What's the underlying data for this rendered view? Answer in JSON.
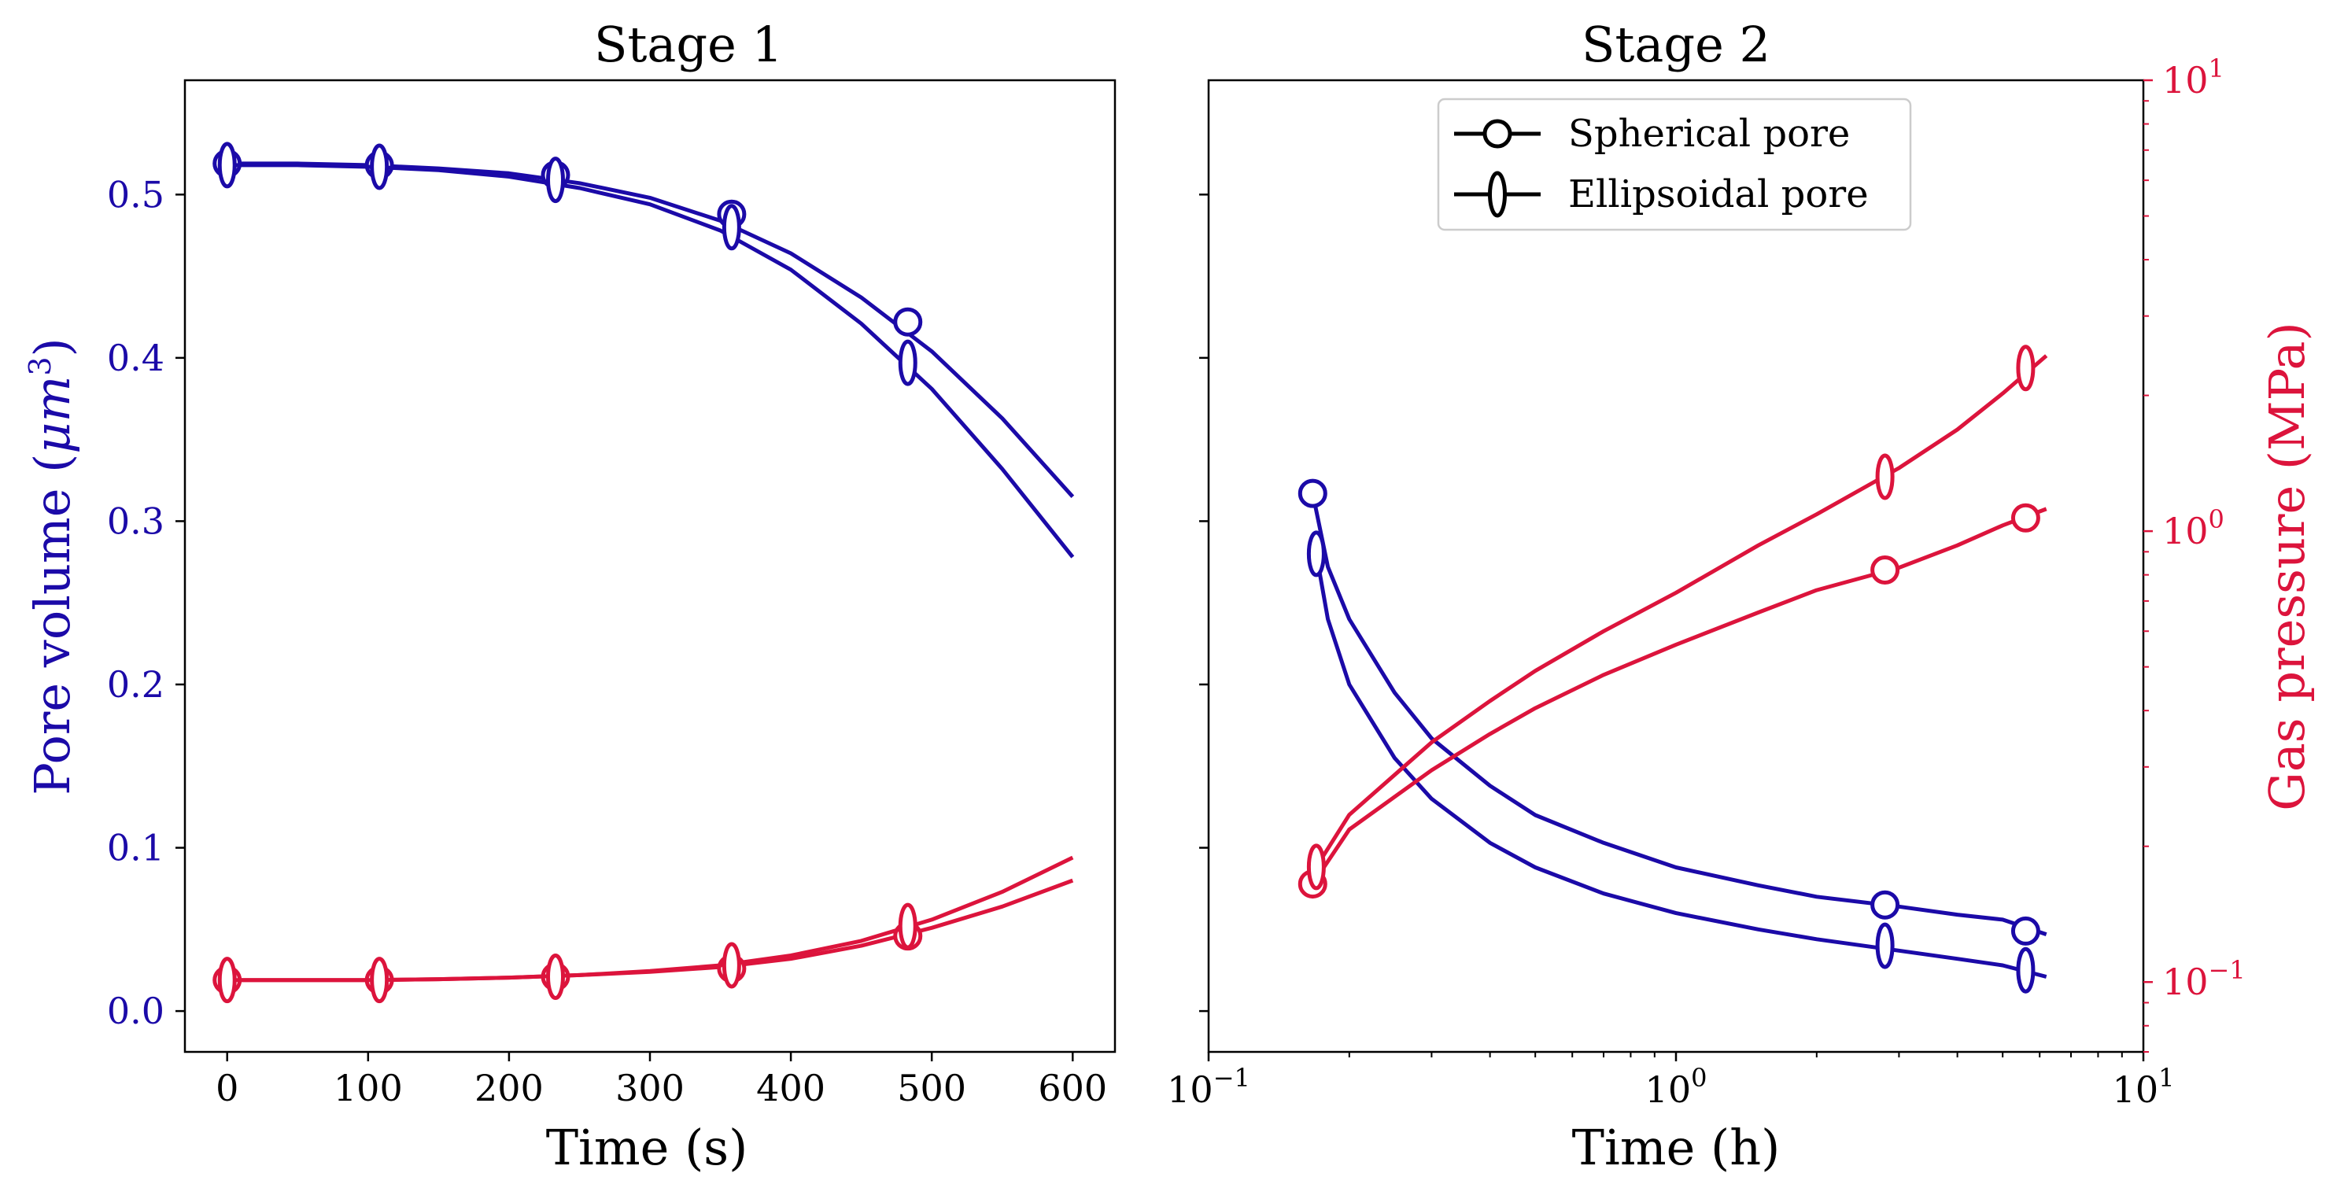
{
  "colors": {
    "volume": "#1b0aa8",
    "pressure": "#dc143c",
    "axis": "#000000",
    "legend_marker": "#000000"
  },
  "chart_data": [
    {
      "id": "stage1",
      "type": "line",
      "title": "Stage 1",
      "xlabel": "Time (s)",
      "ylabel": "Pore volume (μm³)",
      "ylabel_text": "Pore volume (",
      "ylabel_unit": "μm",
      "ylabel_sup": "3",
      "ylabel_close": ")",
      "xlim": [
        -30,
        630
      ],
      "ylim": [
        -0.025,
        0.57
      ],
      "xticks": [
        0,
        100,
        200,
        300,
        400,
        500,
        600
      ],
      "xtick_labels": [
        "0",
        "100",
        "200",
        "300",
        "400",
        "500",
        "600"
      ],
      "yticks": [
        0.0,
        0.1,
        0.2,
        0.3,
        0.4,
        0.5
      ],
      "ytick_labels": [
        "0.0",
        "0.1",
        "0.2",
        "0.3",
        "0.4",
        "0.5"
      ],
      "series": [
        {
          "name": "Spherical pore volume",
          "color_key": "volume",
          "marker": "circle",
          "x": [
            0,
            50,
            100,
            150,
            200,
            250,
            300,
            350,
            400,
            450,
            500,
            550,
            600
          ],
          "y": [
            0.519,
            0.519,
            0.518,
            0.516,
            0.513,
            0.507,
            0.498,
            0.484,
            0.464,
            0.437,
            0.404,
            0.363,
            0.315
          ],
          "marker_x": [
            0,
            108,
            233,
            358,
            483
          ],
          "marker_y": [
            0.519,
            0.518,
            0.512,
            0.488,
            0.422
          ]
        },
        {
          "name": "Ellipsoidal pore volume",
          "color_key": "volume",
          "marker": "ellipse",
          "x": [
            0,
            50,
            100,
            150,
            200,
            250,
            300,
            350,
            400,
            450,
            500,
            550,
            600
          ],
          "y": [
            0.518,
            0.518,
            0.517,
            0.515,
            0.511,
            0.504,
            0.494,
            0.478,
            0.454,
            0.421,
            0.381,
            0.332,
            0.278
          ],
          "marker_x": [
            0,
            108,
            233,
            358,
            483
          ],
          "marker_y": [
            0.518,
            0.517,
            0.509,
            0.48,
            0.397
          ]
        },
        {
          "name": "Spherical pore pressure",
          "color_key": "pressure",
          "marker": "circle",
          "x": [
            0,
            50,
            100,
            150,
            200,
            250,
            300,
            350,
            400,
            450,
            500,
            550,
            600
          ],
          "y": [
            0.019,
            0.019,
            0.019,
            0.0195,
            0.0205,
            0.022,
            0.024,
            0.027,
            0.032,
            0.04,
            0.051,
            0.064,
            0.08
          ],
          "marker_x": [
            0,
            108,
            233,
            358,
            483
          ],
          "marker_y": [
            0.019,
            0.019,
            0.021,
            0.026,
            0.046
          ]
        },
        {
          "name": "Ellipsoidal pore pressure",
          "color_key": "pressure",
          "marker": "ellipse",
          "x": [
            0,
            50,
            100,
            150,
            200,
            250,
            300,
            350,
            400,
            450,
            500,
            550,
            600
          ],
          "y": [
            0.019,
            0.019,
            0.019,
            0.0195,
            0.0205,
            0.022,
            0.0245,
            0.028,
            0.034,
            0.043,
            0.056,
            0.073,
            0.094
          ],
          "marker_x": [
            0,
            108,
            233,
            358,
            483
          ],
          "marker_y": [
            0.019,
            0.019,
            0.021,
            0.028,
            0.052
          ]
        }
      ]
    },
    {
      "id": "stage2",
      "type": "line",
      "title": "Stage 2",
      "xlabel": "Time (h)",
      "xscale": "log",
      "xlim": [
        0.1,
        10
      ],
      "xtick_labels": [
        {
          "value": 0.1,
          "base": "10",
          "exp": "−1"
        },
        {
          "value": 1,
          "base": "10",
          "exp": "0"
        },
        {
          "value": 10,
          "base": "10",
          "exp": "1"
        }
      ],
      "left_axis": {
        "ylim": [
          -0.025,
          0.57
        ],
        "shared_with": "stage1",
        "tick_labels_visible": false
      },
      "right_axis": {
        "ylabel": "Gas pressure (MPa)",
        "yscale": "log",
        "ylim": [
          0.07,
          10
        ],
        "ytick_labels": [
          {
            "value": 0.1,
            "base": "10",
            "exp": "−1"
          },
          {
            "value": 1,
            "base": "10",
            "exp": "0"
          },
          {
            "value": 10,
            "base": "10",
            "exp": "1"
          }
        ]
      },
      "legend": {
        "placement": "upper-center",
        "entries": [
          {
            "label": "Spherical pore",
            "marker": "circle"
          },
          {
            "label": "Ellipsoidal pore",
            "marker": "ellipse"
          }
        ]
      },
      "series": [
        {
          "name": "Spherical pore volume",
          "axis": "left",
          "color_key": "volume",
          "marker": "circle",
          "x": [
            0.167,
            0.18,
            0.2,
            0.25,
            0.3,
            0.4,
            0.5,
            0.7,
            1.0,
            1.5,
            2.0,
            3.0,
            4.0,
            5.0,
            6.2
          ],
          "y": [
            0.317,
            0.272,
            0.24,
            0.195,
            0.167,
            0.138,
            0.12,
            0.103,
            0.088,
            0.077,
            0.07,
            0.064,
            0.059,
            0.056,
            0.047
          ],
          "marker_x": [
            0.167,
            2.8,
            5.6
          ],
          "marker_y": [
            0.317,
            0.065,
            0.049
          ]
        },
        {
          "name": "Ellipsoidal pore volume",
          "axis": "left",
          "color_key": "volume",
          "marker": "ellipse",
          "x": [
            0.17,
            0.18,
            0.2,
            0.25,
            0.3,
            0.4,
            0.5,
            0.7,
            1.0,
            1.5,
            2.0,
            3.0,
            4.0,
            5.0,
            6.2
          ],
          "y": [
            0.28,
            0.24,
            0.2,
            0.155,
            0.13,
            0.103,
            0.088,
            0.072,
            0.06,
            0.05,
            0.044,
            0.037,
            0.032,
            0.028,
            0.021
          ],
          "marker_x": [
            0.17,
            2.8,
            5.6
          ],
          "marker_y": [
            0.28,
            0.04,
            0.025
          ]
        },
        {
          "name": "Spherical pore pressure",
          "axis": "right",
          "color_key": "pressure",
          "marker": "circle",
          "x": [
            0.167,
            0.2,
            0.3,
            0.4,
            0.5,
            0.7,
            1.0,
            1.5,
            2.0,
            3.0,
            4.0,
            5.0,
            6.2
          ],
          "y": [
            0.165,
            0.218,
            0.295,
            0.355,
            0.405,
            0.48,
            0.56,
            0.66,
            0.74,
            0.83,
            0.93,
            1.03,
            1.12
          ],
          "marker_x": [
            0.167,
            2.8,
            5.6
          ],
          "marker_y": [
            0.165,
            0.82,
            1.07
          ]
        },
        {
          "name": "Ellipsoidal pore pressure",
          "axis": "right",
          "color_key": "pressure",
          "marker": "ellipse",
          "x": [
            0.17,
            0.2,
            0.3,
            0.4,
            0.5,
            0.7,
            1.0,
            1.5,
            2.0,
            3.0,
            4.0,
            5.0,
            6.2
          ],
          "y": [
            0.18,
            0.235,
            0.34,
            0.42,
            0.49,
            0.6,
            0.73,
            0.93,
            1.09,
            1.38,
            1.68,
            2.02,
            2.45
          ],
          "marker_x": [
            0.17,
            2.8,
            5.6
          ],
          "marker_y": [
            0.18,
            1.32,
            2.3
          ]
        }
      ]
    }
  ]
}
